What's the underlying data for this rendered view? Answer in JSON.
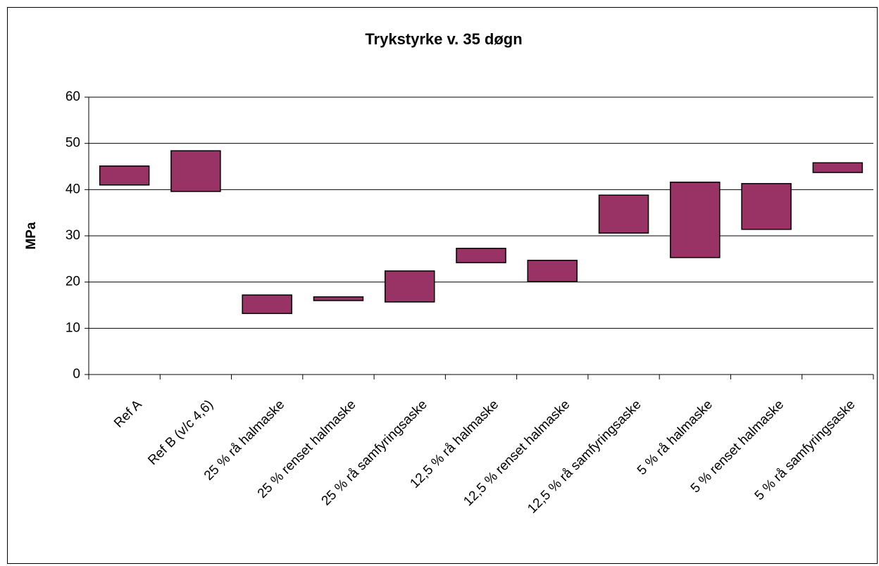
{
  "chart_data": {
    "type": "range-bar",
    "title": "Trykstyrke v. 35 døgn",
    "y_label": "MPa",
    "categories": [
      "Ref A",
      "Ref B (v/c 4,6)",
      "25 % rå halmaske",
      "25 % renset halmaske",
      "25 % rå samfyringsaske",
      "12,5 % rå halmaske",
      "12,5 % renset halmaske",
      "12,5 % rå samfyringsaske",
      "5 % rå halmaske",
      "5 % renset halmaske",
      "5 % rå samfyringsaske"
    ],
    "low": [
      41.0,
      39.6,
      13.2,
      16.0,
      15.7,
      24.2,
      20.1,
      30.6,
      25.3,
      31.4,
      43.7
    ],
    "high": [
      45.1,
      48.4,
      17.2,
      16.8,
      22.4,
      27.3,
      24.7,
      38.8,
      41.6,
      41.3,
      45.8
    ],
    "color": "#993366",
    "ylim": [
      0,
      60
    ],
    "yticks": [
      0,
      10,
      20,
      30,
      40,
      50,
      60
    ],
    "grid": true
  }
}
